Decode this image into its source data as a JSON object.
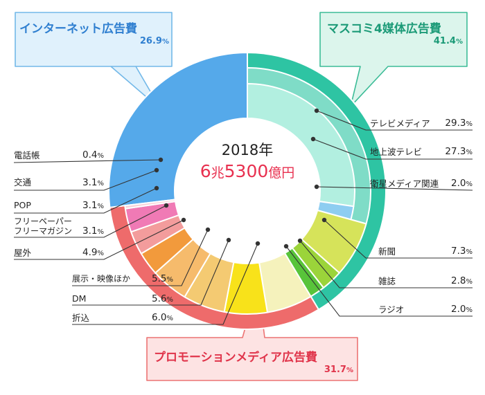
{
  "chart_data": {
    "type": "pie",
    "center": {
      "year": "2018年",
      "amount_a": "6",
      "unit_a": "兆",
      "amount_b": "5300",
      "unit_b": "億円"
    },
    "groups": [
      {
        "name": "マスコミ4媒体広告費",
        "value": 41.4,
        "value_label": "41.4",
        "color": "#2ec4a3",
        "items": [
          {
            "name": "テレビメディア",
            "value": 29.3,
            "value_label": "29.3",
            "sub": [
              {
                "name": "地上波テレビ",
                "value": 27.3,
                "value_label": "27.3"
              },
              {
                "name": "衛星メディア関連",
                "value": 2.0,
                "value_label": "2.0"
              }
            ]
          },
          {
            "name": "新聞",
            "value": 7.3,
            "value_label": "7.3"
          },
          {
            "name": "雑誌",
            "value": 2.8,
            "value_label": "2.8"
          },
          {
            "name": "ラジオ",
            "value": 2.0,
            "value_label": "2.0"
          }
        ]
      },
      {
        "name": "プロモーションメディア広告費",
        "value": 31.7,
        "value_label": "31.7",
        "color": "#ee6b6b",
        "items": [
          {
            "name": "折込",
            "value": 6.0,
            "value_label": "6.0"
          },
          {
            "name": "DM",
            "value": 5.6,
            "value_label": "5.6"
          },
          {
            "name": "展示・映像ほか",
            "value": 5.5,
            "value_label": "5.5"
          },
          {
            "name": "屋外",
            "value": 4.9,
            "value_label": "4.9"
          },
          {
            "name": "フリーペーパー\nフリーマガジン",
            "value": 3.1,
            "value_label": "3.1"
          },
          {
            "name": "POP",
            "value": 3.1,
            "value_label": "3.1"
          },
          {
            "name": "交通",
            "value": 3.1,
            "value_label": "3.1"
          },
          {
            "name": "電話帳",
            "value": 0.4,
            "value_label": "0.4"
          }
        ]
      },
      {
        "name": "インターネット広告費",
        "value": 26.9,
        "value_label": "26.9",
        "color": "#55a9ea",
        "items": []
      }
    ],
    "percent_sign": "%",
    "colors": {
      "mass_outer": "#2ec4a3",
      "mass_inner": "#7fdcc7",
      "tv_terrestrial": "#b2efe0",
      "tv_satellite": "#8ecdf1",
      "newspaper": "#d6e35a",
      "magazine": "#9bd43a",
      "radio": "#58c43a",
      "promo_outer": "#ee6b6b",
      "insert": "#f5f2bc",
      "dm": "#f8e21a",
      "display": "#f4ca72",
      "outdoor": "#f6bb6c",
      "freepaper": "#f29a3c",
      "pop": "#f39c9c",
      "transit": "#f07ab5",
      "phonebook": "#f8d0d6",
      "internet": "#55a9ea"
    }
  }
}
